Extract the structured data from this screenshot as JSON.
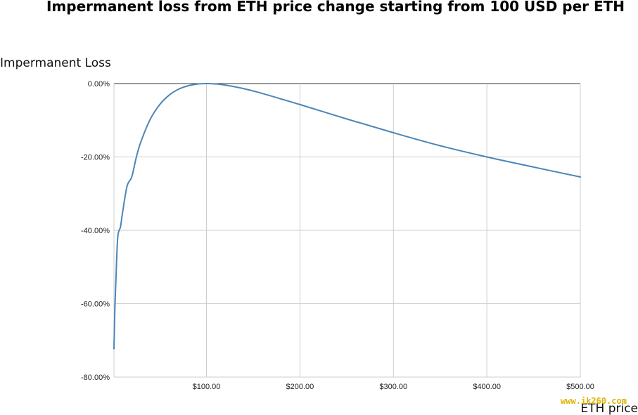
{
  "chart_data": {
    "type": "line",
    "title": "Impermanent loss from ETH price change starting from 100 USD per ETH",
    "xlabel": "ETH price",
    "ylabel": "Impermanent Loss",
    "xlim": [
      1,
      500
    ],
    "ylim": [
      -80,
      0
    ],
    "x_ticks": [
      100,
      200,
      300,
      400,
      500
    ],
    "x_tick_labels": [
      "$100.00",
      "$200.00",
      "$300.00",
      "$400.00",
      "$500.00"
    ],
    "y_ticks": [
      0,
      -20,
      -40,
      -60,
      -80
    ],
    "y_tick_labels": [
      "0.00%",
      "-20.00%",
      "-40.00%",
      "-60.00%",
      "-80.00%"
    ],
    "grid": true,
    "legend": "none",
    "series": [
      {
        "color": "#4a86b8",
        "x": [
          1,
          2,
          3,
          5,
          8,
          10,
          15,
          20,
          25,
          30,
          40,
          50,
          60,
          70,
          80,
          90,
          100,
          110,
          120,
          140,
          160,
          180,
          200,
          250,
          300,
          350,
          400,
          450,
          500
        ],
        "y": [
          -72.28,
          -61.4,
          -54.33,
          -42.01,
          -39.06,
          -35.52,
          -28.0,
          -25.46,
          -20.0,
          -15.73,
          -9.65,
          -5.72,
          -3.17,
          -1.56,
          -0.62,
          -0.14,
          0.0,
          -0.11,
          -0.41,
          -1.39,
          -2.71,
          -4.21,
          -5.72,
          -9.64,
          -13.4,
          -16.94,
          -20.0,
          -22.76,
          -25.46
        ]
      }
    ]
  },
  "watermark": "www.ik260.com"
}
